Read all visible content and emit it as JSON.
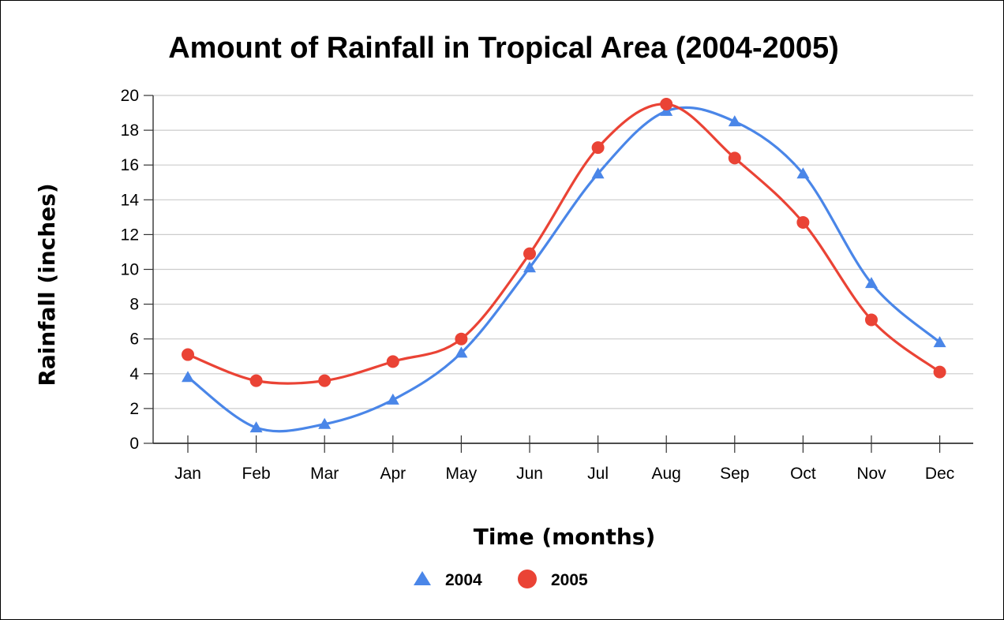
{
  "chart_data": {
    "type": "line",
    "title": "Amount of Rainfall in Tropical Area (2004-2005)",
    "xlabel": "Time (months)",
    "ylabel": "Rainfall (inches)",
    "categories": [
      "Jan",
      "Feb",
      "Mar",
      "Apr",
      "May",
      "Jun",
      "Jul",
      "Aug",
      "Sep",
      "Oct",
      "Nov",
      "Dec"
    ],
    "y_ticks": [
      "0",
      "2",
      "4",
      "6",
      "8",
      "10",
      "12",
      "14",
      "16",
      "18",
      "20"
    ],
    "ylim": [
      0,
      20
    ],
    "grid": true,
    "smooth": true,
    "legend_position": "bottom",
    "series": [
      {
        "name": "2004",
        "marker": "triangle",
        "color": "#4a86e8",
        "values": [
          3.8,
          0.9,
          1.1,
          2.5,
          5.2,
          10.1,
          15.5,
          19.1,
          18.5,
          15.5,
          9.2,
          5.8
        ]
      },
      {
        "name": "2005",
        "marker": "circle",
        "color": "#ea4335",
        "values": [
          5.1,
          3.6,
          3.6,
          4.7,
          6.0,
          10.9,
          17.0,
          19.5,
          16.4,
          12.7,
          7.1,
          4.1
        ]
      }
    ]
  }
}
